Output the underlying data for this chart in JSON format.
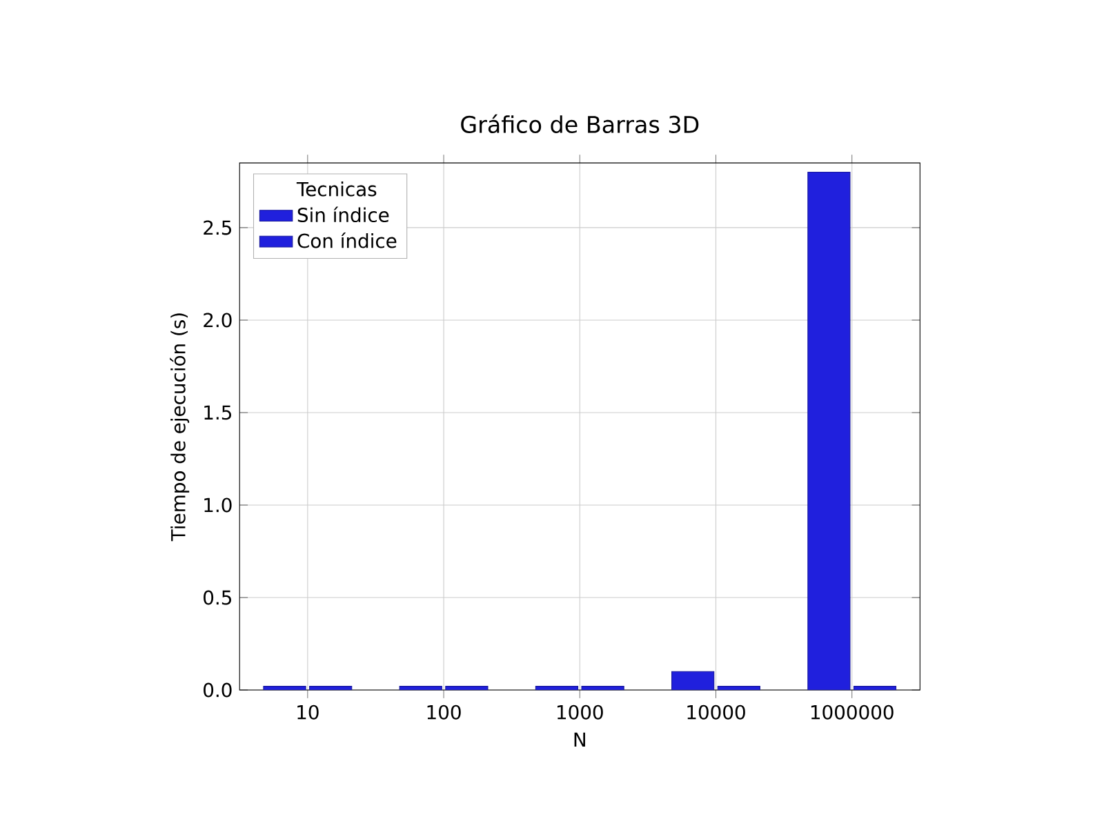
{
  "chart_data": {
    "type": "bar",
    "title": "Gráfico de Barras 3D",
    "xlabel": "N",
    "ylabel": "Tiempo de ejecución (s)",
    "legend_title": "Tecnicas",
    "categories": [
      "10",
      "100",
      "1000",
      "10000",
      "1000000"
    ],
    "series": [
      {
        "name": "Sin índice",
        "color": "#2020dd",
        "values": [
          0.02,
          0.02,
          0.02,
          0.1,
          2.8
        ]
      },
      {
        "name": "Con índice",
        "color": "#2020dd",
        "values": [
          0.02,
          0.02,
          0.02,
          0.02,
          0.02
        ]
      }
    ],
    "ylim": [
      0,
      2.85
    ],
    "yticks": [
      {
        "value": 0,
        "label": "0.0"
      },
      0.5,
      {
        "value": 1,
        "label": "1.0"
      },
      1.5,
      {
        "value": 2,
        "label": "2.0"
      },
      2.5
    ],
    "grid": true,
    "legend": "top left"
  }
}
